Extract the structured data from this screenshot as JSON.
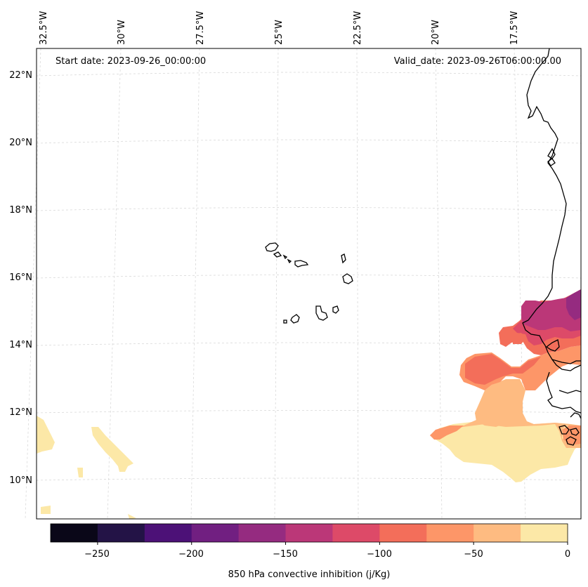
{
  "map": {
    "start_date": "Start date: 2023-09-26_00:00:00",
    "valid_date": "Valid_date: 2023-09-26T06:00:00.00",
    "longitude_labels": [
      "32.5°W",
      "30°W",
      "27.5°W",
      "25°W",
      "22.5°W",
      "20°W",
      "17.5°W"
    ],
    "latitude_labels": [
      "22°N",
      "20°N",
      "18°N",
      "16°N",
      "14°N",
      "12°N",
      "10°N"
    ]
  },
  "colorbar": {
    "label": "850 hPa convective inhibition (j/Kg)",
    "tick_labels": [
      "−250",
      "−200",
      "−150",
      "−100",
      "−50",
      "0"
    ],
    "min": -275,
    "max": 0,
    "levels": [
      -275,
      -250,
      -225,
      -200,
      -175,
      -150,
      -125,
      -100,
      -75,
      -50,
      -25,
      0
    ],
    "colors": [
      "#0a0718",
      "#231346",
      "#4c1177",
      "#711f81",
      "#952b80",
      "#bb3778",
      "#dd4a68",
      "#f36e5a",
      "#fd9668",
      "#febb81",
      "#fce8a7"
    ]
  }
}
